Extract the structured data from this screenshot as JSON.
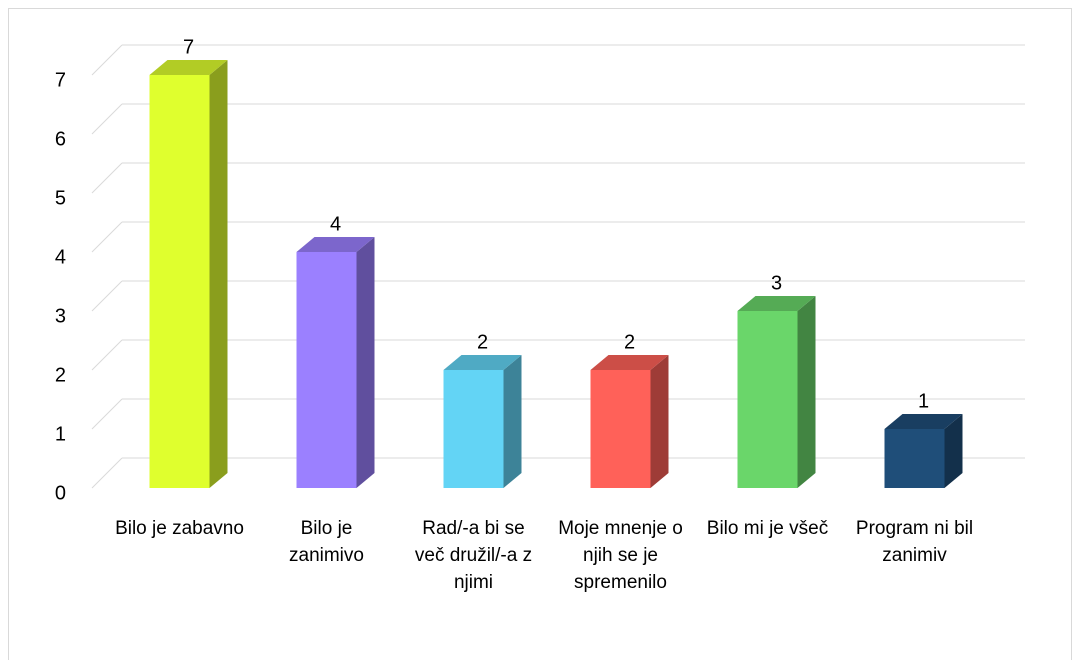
{
  "chart_data": {
    "type": "bar",
    "categories": [
      "Bilo je zabavno",
      "Bilo je zanimivo",
      "Rad/-a bi se več družil/-a z njimi",
      "Moje mnenje o njih se je spremenilo",
      "Bilo mi je všeč",
      "Program ni bil zanimiv"
    ],
    "values": [
      7,
      4,
      2,
      2,
      3,
      1
    ],
    "colors": [
      "#dfff2e",
      "#9b80ff",
      "#63d4f5",
      "#ff6159",
      "#6ad66a",
      "#1f4e79"
    ],
    "ylim": [
      0,
      7
    ],
    "yticks": [
      0,
      1,
      2,
      3,
      4,
      5,
      6,
      7
    ],
    "grid": true
  }
}
